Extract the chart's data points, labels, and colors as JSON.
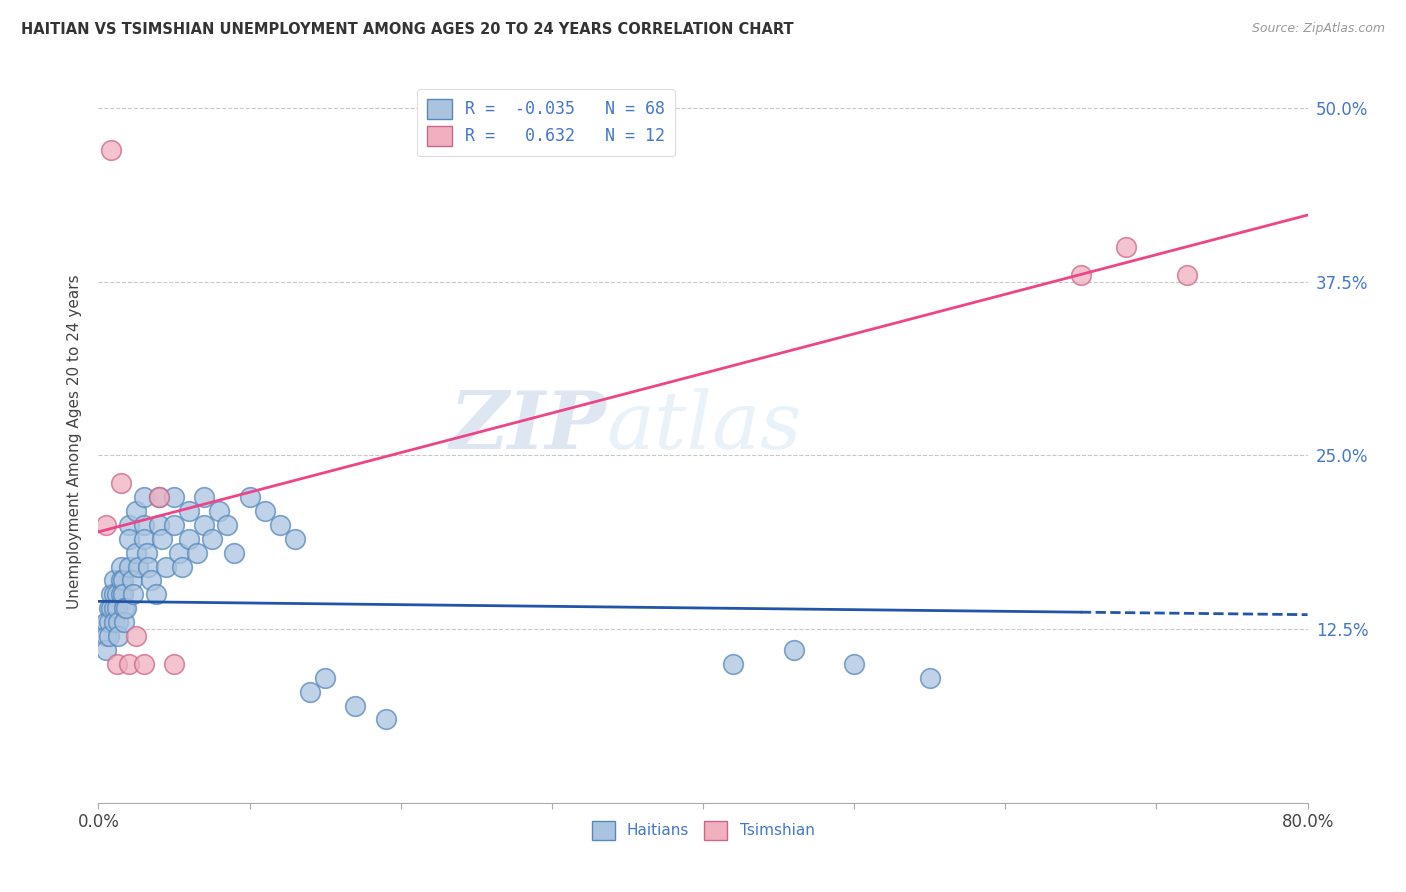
{
  "title": "HAITIAN VS TSIMSHIAN UNEMPLOYMENT AMONG AGES 20 TO 24 YEARS CORRELATION CHART",
  "source": "Source: ZipAtlas.com",
  "ylabel": "Unemployment Among Ages 20 to 24 years",
  "xlim": [
    0.0,
    0.8
  ],
  "ylim": [
    0.0,
    0.52
  ],
  "yticks": [
    0.0,
    0.125,
    0.25,
    0.375,
    0.5
  ],
  "ytick_labels": [
    "",
    "12.5%",
    "25.0%",
    "37.5%",
    "50.0%"
  ],
  "xticks": [
    0.0,
    0.1,
    0.2,
    0.3,
    0.4,
    0.5,
    0.6,
    0.7,
    0.8
  ],
  "xtick_labels": [
    "0.0%",
    "",
    "",
    "",
    "",
    "",
    "",
    "",
    "80.0%"
  ],
  "grid_color": "#c8c8c8",
  "background_color": "#ffffff",
  "haitian_color": "#aac4e0",
  "haitian_edge_color": "#5588bb",
  "tsimshian_color": "#f0b0c0",
  "tsimshian_edge_color": "#cc6688",
  "haitian_line_color": "#2255aa",
  "tsimshian_line_color": "#ee4488",
  "r_haitian": -0.035,
  "n_haitian": 68,
  "r_tsimshian": 0.632,
  "n_tsimshian": 12,
  "watermark_zip": "ZIP",
  "watermark_atlas": "atlas",
  "haitian_x": [
    0.005,
    0.005,
    0.005,
    0.007,
    0.007,
    0.007,
    0.008,
    0.008,
    0.01,
    0.01,
    0.01,
    0.01,
    0.012,
    0.012,
    0.013,
    0.013,
    0.015,
    0.015,
    0.015,
    0.016,
    0.016,
    0.017,
    0.017,
    0.018,
    0.02,
    0.02,
    0.02,
    0.022,
    0.023,
    0.025,
    0.025,
    0.026,
    0.03,
    0.03,
    0.03,
    0.032,
    0.033,
    0.035,
    0.038,
    0.04,
    0.04,
    0.042,
    0.045,
    0.05,
    0.05,
    0.053,
    0.055,
    0.06,
    0.06,
    0.065,
    0.07,
    0.07,
    0.075,
    0.08,
    0.085,
    0.09,
    0.1,
    0.11,
    0.12,
    0.13,
    0.14,
    0.15,
    0.17,
    0.19,
    0.42,
    0.46,
    0.5,
    0.55
  ],
  "haitian_y": [
    0.13,
    0.12,
    0.11,
    0.14,
    0.13,
    0.12,
    0.15,
    0.14,
    0.16,
    0.15,
    0.14,
    0.13,
    0.15,
    0.14,
    0.13,
    0.12,
    0.17,
    0.16,
    0.15,
    0.16,
    0.15,
    0.14,
    0.13,
    0.14,
    0.2,
    0.19,
    0.17,
    0.16,
    0.15,
    0.21,
    0.18,
    0.17,
    0.22,
    0.2,
    0.19,
    0.18,
    0.17,
    0.16,
    0.15,
    0.22,
    0.2,
    0.19,
    0.17,
    0.22,
    0.2,
    0.18,
    0.17,
    0.21,
    0.19,
    0.18,
    0.22,
    0.2,
    0.19,
    0.21,
    0.2,
    0.18,
    0.22,
    0.21,
    0.2,
    0.19,
    0.08,
    0.09,
    0.07,
    0.06,
    0.1,
    0.11,
    0.1,
    0.09
  ],
  "tsimshian_x": [
    0.005,
    0.008,
    0.012,
    0.015,
    0.02,
    0.025,
    0.03,
    0.04,
    0.05,
    0.65,
    0.68,
    0.72
  ],
  "tsimshian_y": [
    0.2,
    0.47,
    0.1,
    0.23,
    0.1,
    0.12,
    0.1,
    0.22,
    0.1,
    0.38,
    0.4,
    0.38
  ]
}
